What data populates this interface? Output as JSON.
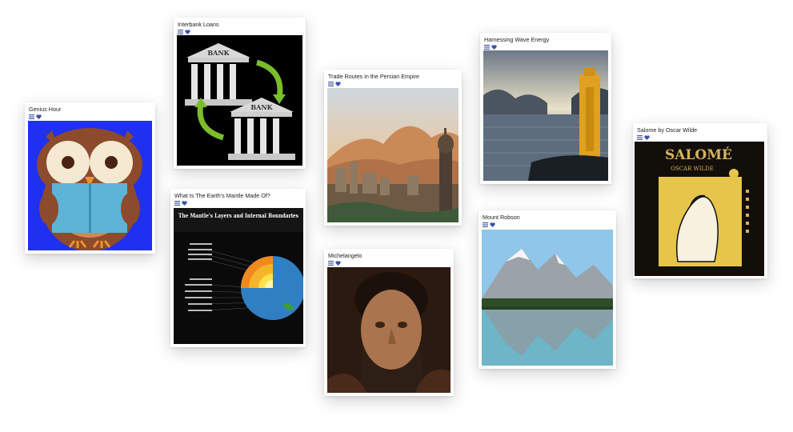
{
  "colors": {
    "accent": "#3b4fa8",
    "icon": "#4a5d9e"
  },
  "cards": [
    {
      "title": "Genius Hour",
      "icons": [
        "list-icon",
        "heart-icon"
      ]
    },
    {
      "title": "Interbank Loans",
      "icons": [
        "list-icon",
        "heart-icon"
      ],
      "image_text": {
        "bank_top": "BANK",
        "bank_bottom": "BANK"
      }
    },
    {
      "title": "What Is The Earth's Mantle Made Of?",
      "icons": [
        "list-icon",
        "heart-icon"
      ],
      "image_text": {
        "heading": "The Mantle's Layers and Internal Boundaries"
      }
    },
    {
      "title": "Trade Routes in the Persian Empire",
      "icons": [
        "list-icon",
        "heart-icon"
      ]
    },
    {
      "title": "Michelangelo",
      "icons": [
        "list-icon",
        "heart-icon"
      ]
    },
    {
      "title": "Harnessing Wave Energy",
      "icons": [
        "list-icon",
        "heart-icon"
      ]
    },
    {
      "title": "Mount Robson",
      "icons": [
        "list-icon",
        "heart-icon"
      ]
    },
    {
      "title": "Salome by Oscar Wilde",
      "icons": [
        "list-icon",
        "heart-icon"
      ],
      "image_text": {
        "book_title": "SALOMÉ",
        "book_author": "OSCAR WILDE"
      }
    }
  ]
}
